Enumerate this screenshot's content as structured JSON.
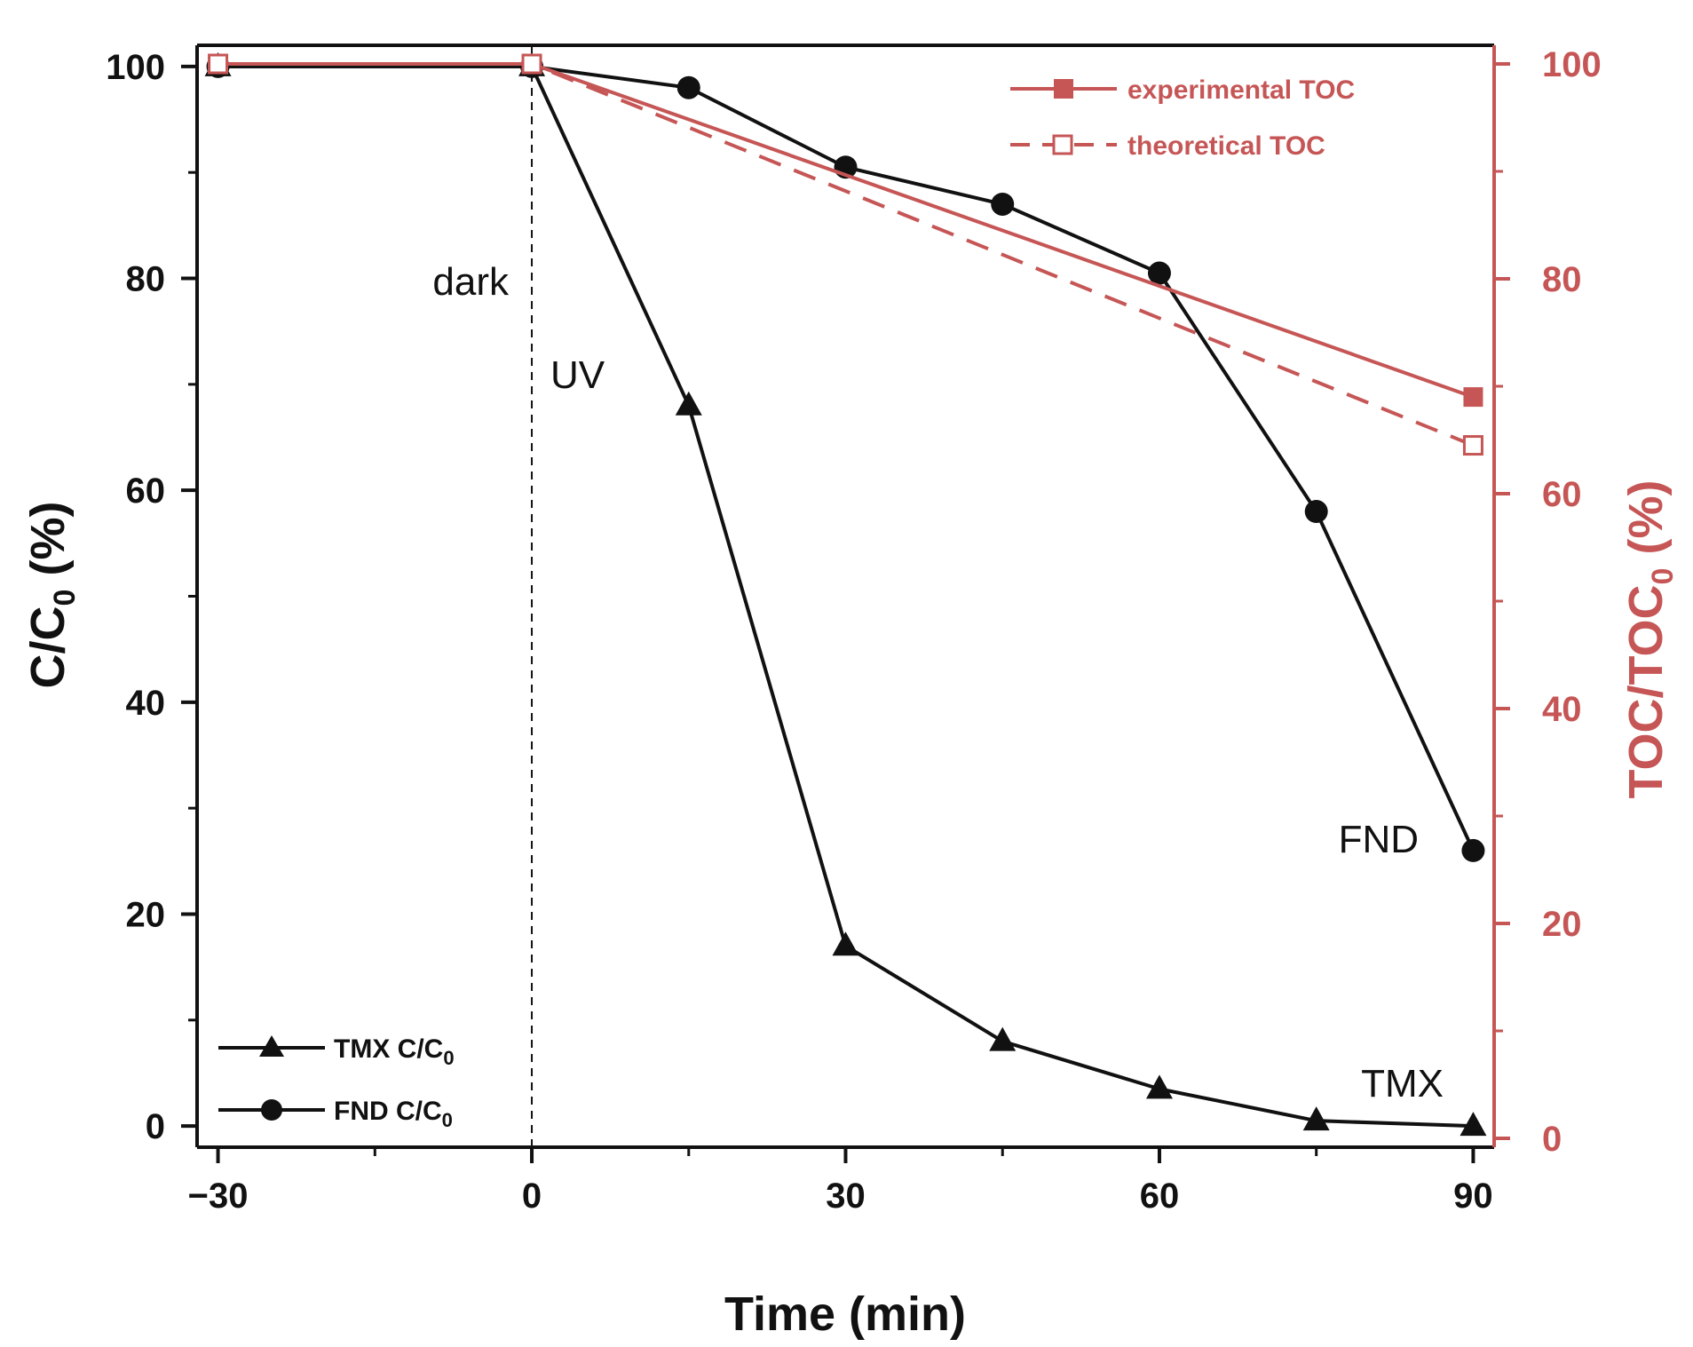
{
  "colors": {
    "black": "#111111",
    "toc": "#c65656",
    "background": "#ffffff"
  },
  "chart_data": {
    "type": "line",
    "title": "",
    "xlabel": "Time (min)",
    "ylabel_left": {
      "main": "C/C",
      "sub": "0",
      "suffix": " (%)"
    },
    "ylabel_right": {
      "main": "TOC/TOC",
      "sub": "0",
      "suffix": " (%)"
    },
    "xlim": [
      -32,
      92
    ],
    "ylim_left": [
      -2,
      102
    ],
    "ylim_right": [
      0,
      100
    ],
    "x_ticks": [
      -30,
      0,
      30,
      60,
      90
    ],
    "x_tick_labels": [
      "−30",
      "0",
      "30",
      "60",
      "90"
    ],
    "y_ticks_left": [
      0,
      20,
      40,
      60,
      80,
      100
    ],
    "y_ticks_right": [
      0,
      20,
      40,
      60,
      80,
      100
    ],
    "grid": false,
    "series": [
      {
        "name": "TMX C/C0",
        "legend": {
          "main": "TMX C/C",
          "sub": "0"
        },
        "axis": "left",
        "marker": "triangle",
        "line": "solid",
        "color": "#111111",
        "x": [
          -30,
          0,
          15,
          30,
          45,
          60,
          75,
          90
        ],
        "y": [
          100,
          100,
          68,
          17,
          8,
          3.5,
          0.5,
          0
        ]
      },
      {
        "name": "FND C/C0",
        "legend": {
          "main": "FND C/C",
          "sub": "0"
        },
        "axis": "left",
        "marker": "circle",
        "line": "solid",
        "color": "#111111",
        "x": [
          -30,
          0,
          15,
          30,
          45,
          60,
          75,
          90
        ],
        "y": [
          100,
          100,
          98,
          90.5,
          87,
          80.5,
          58,
          26
        ]
      },
      {
        "name": "experimental TOC",
        "legend": {
          "main": "experimental TOC"
        },
        "axis": "right",
        "marker": "square-filled",
        "line": "solid",
        "color": "#c65656",
        "x": [
          -30,
          0,
          90
        ],
        "y": [
          100,
          100,
          69
        ]
      },
      {
        "name": "theoretical TOC",
        "legend": {
          "main": "theoretical TOC"
        },
        "axis": "right",
        "marker": "square-open",
        "line": "dashed",
        "color": "#c65656",
        "x": [
          -30,
          0,
          90
        ],
        "y": [
          100,
          100,
          64.5
        ]
      }
    ],
    "annotations": {
      "dark": "dark",
      "uv": "UV",
      "fnd": "FND",
      "tmx": "TMX"
    },
    "vertical_marker_x": 0
  }
}
